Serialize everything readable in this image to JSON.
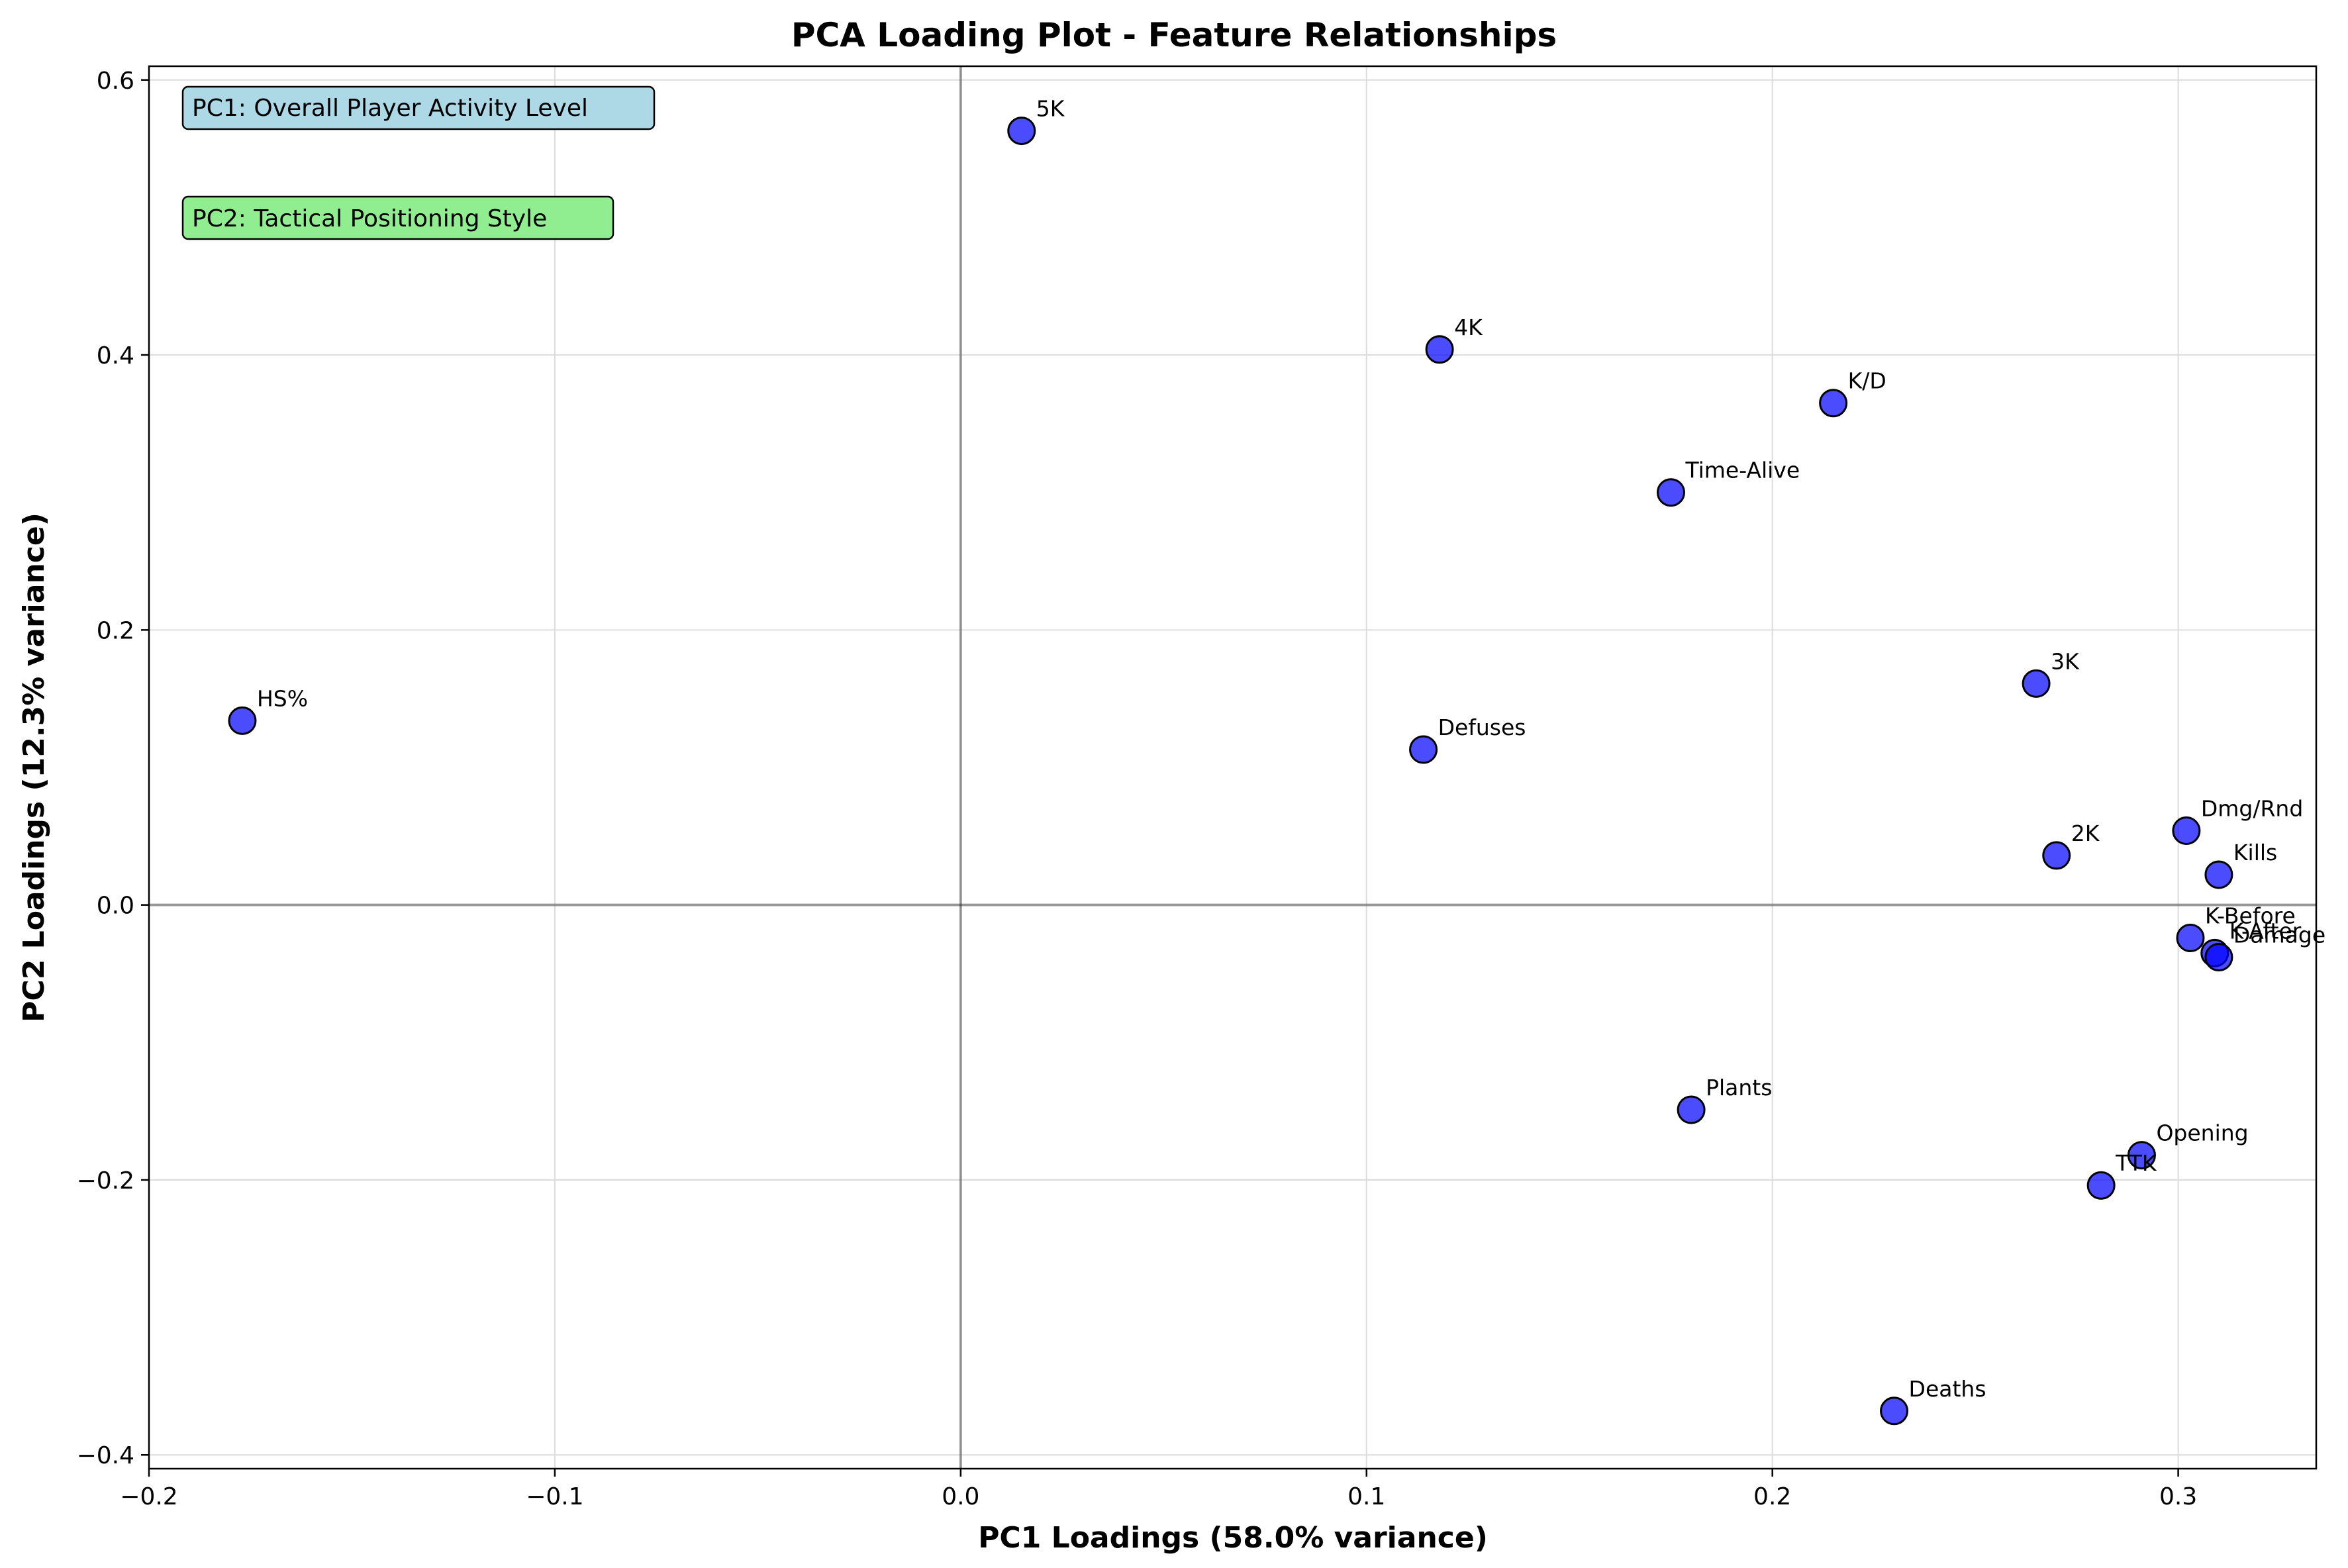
{
  "chart_data": {
    "type": "scatter",
    "title": "PCA Loading Plot - Feature Relationships",
    "xlabel": "PC1 Loadings (58.0% variance)",
    "ylabel": "PC2 Loadings (12.3% variance)",
    "xlim": [
      -0.2,
      0.334
    ],
    "ylim": [
      -0.41,
      0.61
    ],
    "xticks": [
      -0.2,
      -0.1,
      0.0,
      0.1,
      0.2,
      0.3
    ],
    "xtick_labels": [
      "−0.2",
      "−0.1",
      "0.0",
      "0.1",
      "0.2",
      "0.3"
    ],
    "yticks": [
      -0.4,
      -0.2,
      0.0,
      0.2,
      0.4,
      0.6
    ],
    "ytick_labels": [
      "−0.4",
      "−0.2",
      "0.0",
      "0.2",
      "0.4",
      "0.6"
    ],
    "grid": true,
    "reference_lines": {
      "x": 0,
      "y": 0
    },
    "marker_color": "#0000ff",
    "marker_edge_color": "#000000",
    "points": [
      {
        "label": "5K",
        "x": 0.015,
        "y": 0.563
      },
      {
        "label": "4K",
        "x": 0.118,
        "y": 0.404
      },
      {
        "label": "K/D",
        "x": 0.215,
        "y": 0.365
      },
      {
        "label": "Time-Alive",
        "x": 0.175,
        "y": 0.3
      },
      {
        "label": "HS%",
        "x": -0.177,
        "y": 0.134
      },
      {
        "label": "Defuses",
        "x": 0.114,
        "y": 0.113
      },
      {
        "label": "3K",
        "x": 0.265,
        "y": 0.161
      },
      {
        "label": "Dmg/Rnd",
        "x": 0.302,
        "y": 0.054
      },
      {
        "label": "2K",
        "x": 0.27,
        "y": 0.036
      },
      {
        "label": "Kills",
        "x": 0.31,
        "y": 0.022
      },
      {
        "label": "K-Before",
        "x": 0.303,
        "y": -0.024
      },
      {
        "label": "K-After",
        "x": 0.309,
        "y": -0.035
      },
      {
        "label": "Damage",
        "x": 0.31,
        "y": -0.038
      },
      {
        "label": "Plants",
        "x": 0.18,
        "y": -0.149
      },
      {
        "label": "Opening",
        "x": 0.291,
        "y": -0.182
      },
      {
        "label": "TTK",
        "x": 0.281,
        "y": -0.204
      },
      {
        "label": "Deaths",
        "x": 0.23,
        "y": -0.368
      }
    ],
    "annotations": [
      {
        "text": "PC1: Overall Player Activity Level",
        "color": "#add8e6",
        "position": "top-left"
      },
      {
        "text": "PC2: Tactical Positioning Style",
        "color": "#90ee90",
        "position": "top-left"
      }
    ]
  }
}
